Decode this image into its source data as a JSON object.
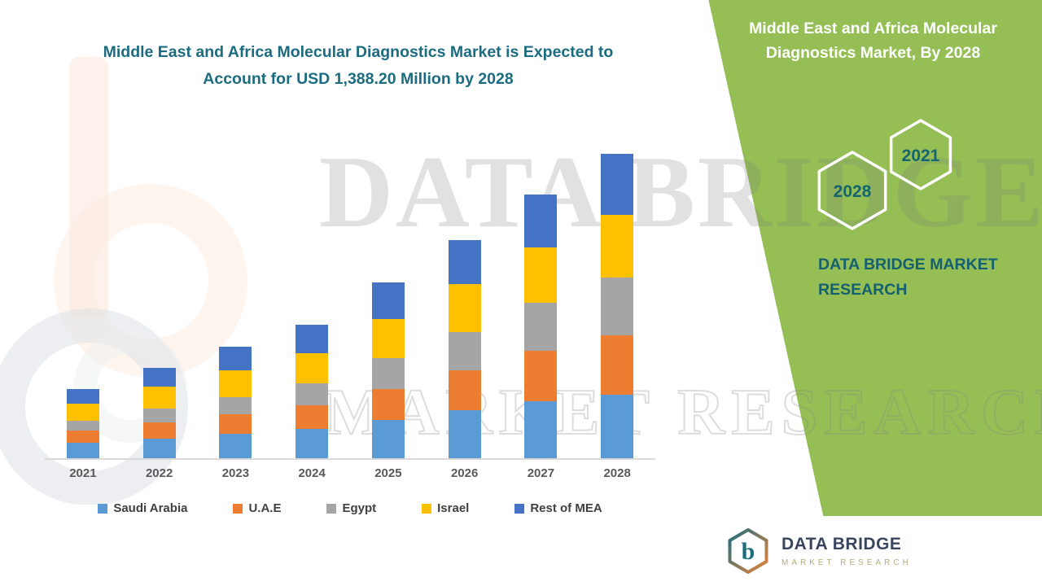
{
  "page": {
    "title_line1": "Middle East and Africa Molecular Diagnostics Market is Expected to",
    "title_line2": "Account for USD 1,388.20 Million by 2028"
  },
  "side_panel": {
    "title": "Middle East and Africa Molecular Diagnostics Market, By 2028",
    "hexagon_years": [
      "2028",
      "2021"
    ],
    "brand_text": "DATA BRIDGE MARKET RESEARCH",
    "bg_color": "#95BF55",
    "text_color": "#14606E"
  },
  "watermark": {
    "line1": "DATA BRIDGE",
    "line2": "MARKET RESEARCH"
  },
  "footer_logo": {
    "name": "DATA BRIDGE",
    "tagline": "MARKET RESEARCH"
  },
  "colors": {
    "headline": "#1B6C80",
    "panel_green": "#95BF55",
    "axis_line": "#D9D9D9"
  },
  "chart_data": {
    "type": "bar",
    "stacked": true,
    "title": "Middle East and Africa Molecular Diagnostics Market is Expected to Account for USD 1,388.20 Million by 2028",
    "unit": "USD Million",
    "categories": [
      "2021",
      "2022",
      "2023",
      "2024",
      "2025",
      "2026",
      "2027",
      "2028"
    ],
    "series": [
      {
        "name": "Saudi Arabia",
        "color": "#5B9BD5",
        "values": [
          70,
          90,
          110,
          135,
          175,
          220,
          260,
          290
        ]
      },
      {
        "name": "U.A.E",
        "color": "#ED7D31",
        "values": [
          55,
          75,
          90,
          105,
          140,
          180,
          230,
          270
        ]
      },
      {
        "name": "Egypt",
        "color": "#A5A5A5",
        "values": [
          45,
          60,
          80,
          100,
          140,
          175,
          220,
          265
        ]
      },
      {
        "name": "Israel",
        "color": "#FFC000",
        "values": [
          80,
          100,
          120,
          140,
          180,
          220,
          250,
          283.2
        ]
      },
      {
        "name": "Rest of MEA",
        "color": "#4472C4",
        "values": [
          65,
          85,
          110,
          130,
          165,
          200,
          240,
          280
        ]
      }
    ],
    "xlabel": "",
    "ylabel": "",
    "ylim": [
      0,
      1450
    ],
    "grid": false,
    "y_axis_shown": false,
    "legend_position": "bottom",
    "annotation_total_2028": "USD 1,388.20 Million"
  }
}
